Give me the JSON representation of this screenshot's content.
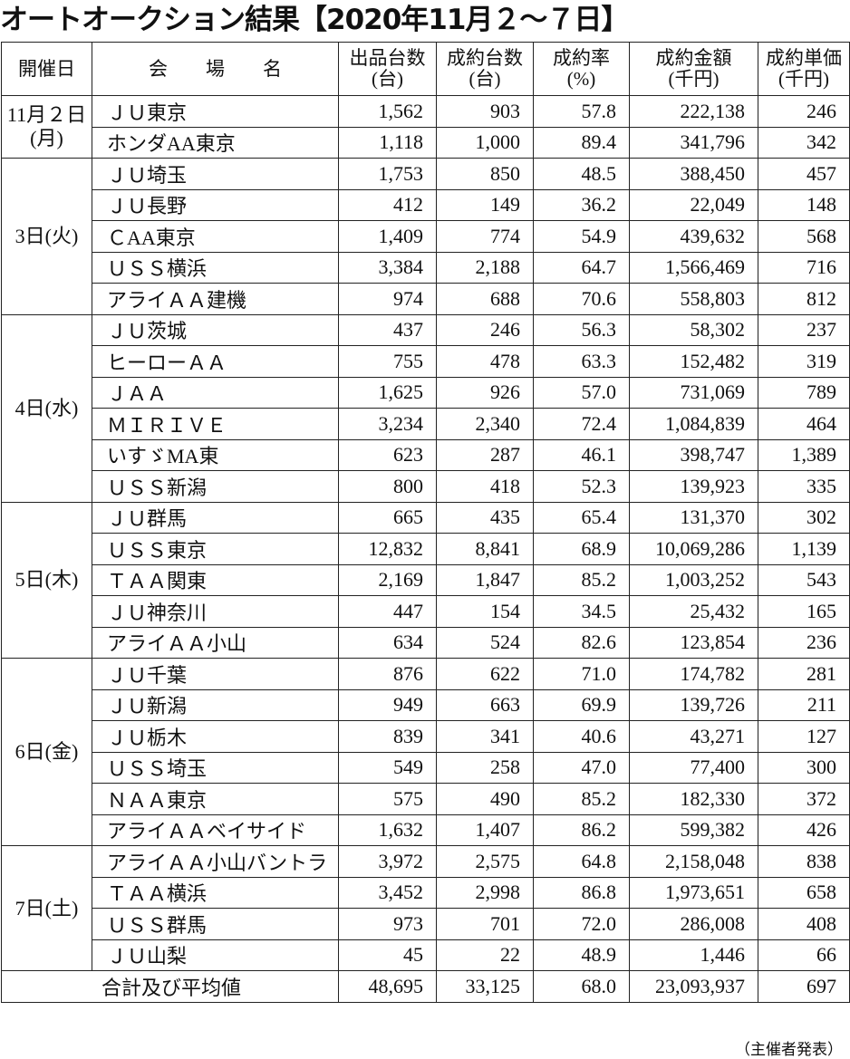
{
  "title": "オートオークション結果【2020年11月２～７日】",
  "headers": {
    "date": "開催日",
    "venue": "会　　場　　名",
    "listed": [
      "出品台数",
      "(台)"
    ],
    "sold": [
      "成約台数",
      "(台)"
    ],
    "rate": [
      "成約率",
      "(%)"
    ],
    "amount": [
      "成約金額",
      "(千円)"
    ],
    "unit_price": [
      "成約単価",
      "(千円)"
    ]
  },
  "groups": [
    {
      "date": "11月２日",
      "weekday": "(月)",
      "rows": [
        [
          "ＪＵ東京",
          "1,562",
          "903",
          "57.8",
          "222,138",
          "246"
        ],
        [
          "ホンダAA東京",
          "1,118",
          "1,000",
          "89.4",
          "341,796",
          "342"
        ]
      ]
    },
    {
      "date": "3日(火)",
      "weekday": "",
      "rows": [
        [
          "ＪＵ埼玉",
          "1,753",
          "850",
          "48.5",
          "388,450",
          "457"
        ],
        [
          "ＪＵ長野",
          "412",
          "149",
          "36.2",
          "22,049",
          "148"
        ],
        [
          "ＣAA東京",
          "1,409",
          "774",
          "54.9",
          "439,632",
          "568"
        ],
        [
          "ＵＳＳ横浜",
          "3,384",
          "2,188",
          "64.7",
          "1,566,469",
          "716"
        ],
        [
          "アライＡＡ建機",
          "974",
          "688",
          "70.6",
          "558,803",
          "812"
        ]
      ]
    },
    {
      "date": "4日(水)",
      "weekday": "",
      "rows": [
        [
          "ＪＵ茨城",
          "437",
          "246",
          "56.3",
          "58,302",
          "237"
        ],
        [
          "ヒーローＡＡ",
          "755",
          "478",
          "63.3",
          "152,482",
          "319"
        ],
        [
          "ＪＡＡ",
          "1,625",
          "926",
          "57.0",
          "731,069",
          "789"
        ],
        [
          "ＭＩＲＩＶＥ",
          "3,234",
          "2,340",
          "72.4",
          "1,084,839",
          "464"
        ],
        [
          "いすゞMA東",
          "623",
          "287",
          "46.1",
          "398,747",
          "1,389"
        ],
        [
          "ＵＳＳ新潟",
          "800",
          "418",
          "52.3",
          "139,923",
          "335"
        ]
      ]
    },
    {
      "date": "5日(木)",
      "weekday": "",
      "rows": [
        [
          "ＪＵ群馬",
          "665",
          "435",
          "65.4",
          "131,370",
          "302"
        ],
        [
          "ＵＳＳ東京",
          "12,832",
          "8,841",
          "68.9",
          "10,069,286",
          "1,139"
        ],
        [
          "ＴＡＡ関東",
          "2,169",
          "1,847",
          "85.2",
          "1,003,252",
          "543"
        ],
        [
          "ＪＵ神奈川",
          "447",
          "154",
          "34.5",
          "25,432",
          "165"
        ],
        [
          "アライＡＡ小山",
          "634",
          "524",
          "82.6",
          "123,854",
          "236"
        ]
      ]
    },
    {
      "date": "6日(金)",
      "weekday": "",
      "rows": [
        [
          "ＪＵ千葉",
          "876",
          "622",
          "71.0",
          "174,782",
          "281"
        ],
        [
          "ＪＵ新潟",
          "949",
          "663",
          "69.9",
          "139,726",
          "211"
        ],
        [
          "ＪＵ栃木",
          "839",
          "341",
          "40.6",
          "43,271",
          "127"
        ],
        [
          "ＵＳＳ埼玉",
          "549",
          "258",
          "47.0",
          "77,400",
          "300"
        ],
        [
          "ＮＡＡ東京",
          "575",
          "490",
          "85.2",
          "182,330",
          "372"
        ],
        [
          "アライＡＡベイサイド",
          "1,632",
          "1,407",
          "86.2",
          "599,382",
          "426"
        ]
      ]
    },
    {
      "date": "7日(土)",
      "weekday": "",
      "rows": [
        [
          "アライＡＡ小山バントラ",
          "3,972",
          "2,575",
          "64.8",
          "2,158,048",
          "838"
        ],
        [
          "ＴＡＡ横浜",
          "3,452",
          "2,998",
          "86.8",
          "1,973,651",
          "658"
        ],
        [
          "ＵＳＳ群馬",
          "973",
          "701",
          "72.0",
          "286,008",
          "408"
        ],
        [
          "ＪＵ山梨",
          "45",
          "22",
          "48.9",
          "1,446",
          "66"
        ]
      ]
    }
  ],
  "total": {
    "label": "合計及び平均値",
    "values": [
      "48,695",
      "33,125",
      "68.0",
      "23,093,937",
      "697"
    ]
  },
  "note": "（主催者発表）"
}
